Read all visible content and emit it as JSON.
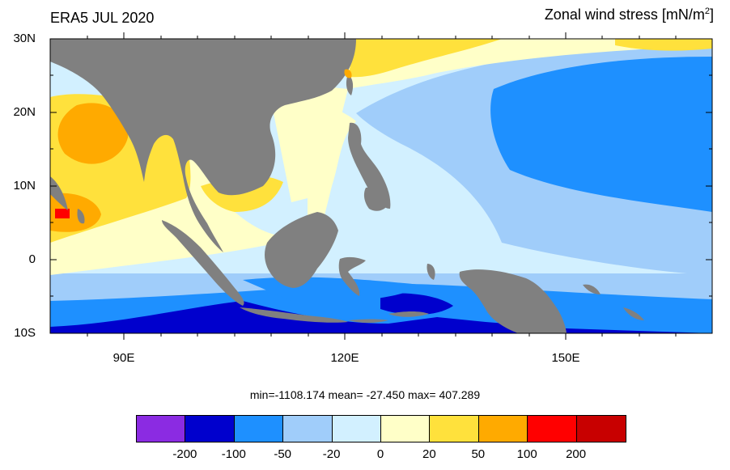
{
  "title_left": "ERA5 JUL 2020",
  "title_right_main": "Zonal wind stress [mN/m",
  "title_right_sup": "2",
  "title_right_end": "]",
  "y_labels": [
    "30N",
    "20N",
    "10N",
    "0",
    "10S"
  ],
  "x_labels": [
    "90E",
    "120E",
    "150E"
  ],
  "stats": "min=-1108.174  mean= -27.450  max= 407.289",
  "colorbar": {
    "colors": [
      "#8b2be2",
      "#0000cd",
      "#1e90ff",
      "#a0cdfa",
      "#d2f0ff",
      "#ffffc8",
      "#ffe13c",
      "#ffaa00",
      "#ff0000",
      "#c80000"
    ],
    "labels": [
      "-200",
      "-100",
      "-50",
      "-20",
      "0",
      "20",
      "50",
      "100",
      "200"
    ]
  },
  "map": {
    "lon_range": [
      80,
      170
    ],
    "lat_range": [
      -10,
      30
    ],
    "land_color": "#808080",
    "ocean_default": "#d2f0ff"
  }
}
